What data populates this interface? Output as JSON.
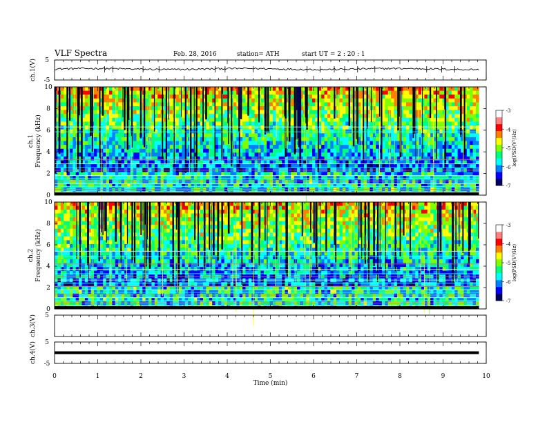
{
  "header": {
    "title": "VLF  Spectra",
    "date": "Feb. 28, 2016",
    "station": "station= ATH",
    "start": "start  UT  =   2  : 20 : 1"
  },
  "chart_data": {
    "type": "heatmap",
    "x_axis": {
      "label": "Time  (min)",
      "range": [
        0,
        10
      ],
      "ticks": [
        0,
        1,
        2,
        3,
        4,
        5,
        6,
        7,
        8,
        9,
        10
      ],
      "data_end": 9.83
    },
    "panels": [
      {
        "id": "ch1-waveform",
        "type": "line",
        "ylabel": "ch.1(V)",
        "ylim": [
          -5,
          5
        ],
        "ytick_labels": [
          "5",
          "-5"
        ],
        "mean_level": 0.5,
        "spike_times": [
          1.16,
          1.35,
          2.05,
          2.42,
          3.72,
          3.95,
          4.6,
          5.85,
          6.15,
          6.48,
          6.72,
          7.02,
          7.42,
          8.62,
          8.97,
          9.27
        ]
      },
      {
        "id": "ch1-spectrogram",
        "type": "heatmap",
        "ylabel": "ch.1\nFrequency  (kHz)",
        "ylim": [
          0,
          10
        ],
        "ytick_labels": [
          "0",
          "2",
          "4",
          "6",
          "8",
          "10"
        ],
        "band_lines_khz": [
          0.3,
          0.55,
          0.8,
          1.05,
          1.3,
          1.55,
          1.8,
          2.3,
          2.55,
          2.9,
          3.3,
          5.85,
          6.3
        ]
      },
      {
        "id": "ch2-spectrogram",
        "type": "heatmap",
        "ylabel": "ch.2\nFrequency  (kHz)",
        "ylim": [
          0,
          10
        ],
        "ytick_labels": [
          "0",
          "2",
          "4",
          "6",
          "8",
          "10"
        ],
        "band_lines_khz": [
          0.3,
          0.55,
          0.8,
          1.05,
          1.3,
          1.55,
          1.8,
          2.1,
          2.4,
          2.7,
          3.0,
          3.3,
          3.7,
          4.2,
          4.9,
          5.4
        ]
      },
      {
        "id": "ch3-waveform",
        "type": "line",
        "ylabel": "ch.3(V)",
        "ylim": [
          -5,
          5
        ],
        "ytick_labels": [
          "5"
        ],
        "mean_level": null
      },
      {
        "id": "ch4-waveform",
        "type": "line",
        "ylabel": "ch.4(V)",
        "ylim": [
          -5,
          5
        ],
        "ytick_labels": [
          "5",
          "-5"
        ],
        "mean_level": 0.0
      }
    ],
    "colorbar": {
      "label": "log(PSD(V²/Hz)",
      "range": [
        -7,
        -3
      ],
      "tick_labels": [
        "-3",
        "-4",
        "-5",
        "-6",
        "-7"
      ],
      "colors": [
        "#000060",
        "#0000ff",
        "#0080ff",
        "#00ffff",
        "#00ff80",
        "#80ff00",
        "#ffff00",
        "#ff8000",
        "#ff0000",
        "#ff8080",
        "#ffffff"
      ]
    }
  }
}
